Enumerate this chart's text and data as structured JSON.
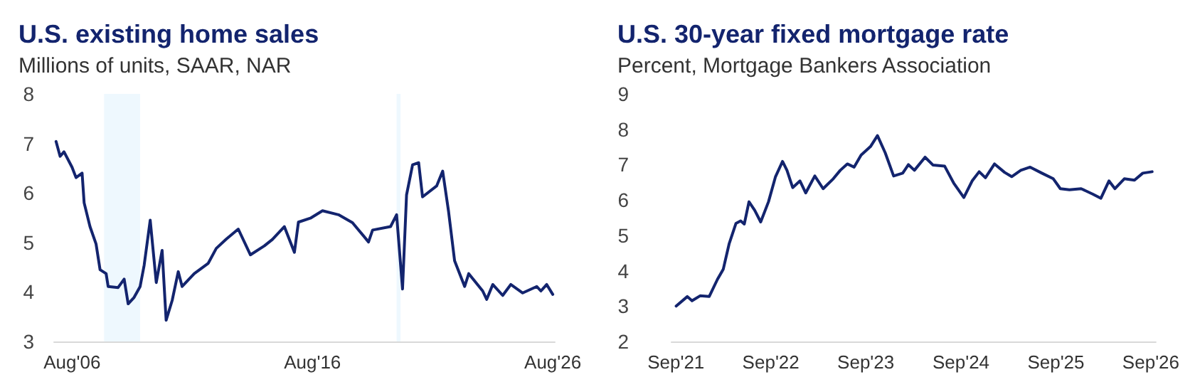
{
  "chart_data": [
    {
      "type": "line",
      "title": "U.S. existing home sales",
      "subtitle": "Millions of units, SAAR, NAR",
      "x": [
        "2005-12",
        "2006-02",
        "2006-04",
        "2006-08",
        "2006-10",
        "2007-01",
        "2007-02",
        "2007-05",
        "2007-08",
        "2007-10",
        "2008-01",
        "2008-02",
        "2008-07",
        "2008-10",
        "2008-12",
        "2009-03",
        "2009-06",
        "2009-08",
        "2009-11",
        "2010-02",
        "2010-05",
        "2010-07",
        "2010-10",
        "2011-01",
        "2011-03",
        "2011-09",
        "2012-04",
        "2012-08",
        "2013-01",
        "2013-07",
        "2014-01",
        "2014-08",
        "2014-12",
        "2015-06",
        "2015-11",
        "2016-01",
        "2016-07",
        "2017-01",
        "2017-09",
        "2018-04",
        "2018-12",
        "2019-02",
        "2019-11",
        "2020-02",
        "2020-05",
        "2020-07",
        "2020-10",
        "2021-01",
        "2021-03",
        "2021-10",
        "2022-01",
        "2022-04",
        "2022-07",
        "2022-12",
        "2023-02",
        "2023-09",
        "2023-11",
        "2024-02",
        "2024-07",
        "2024-11",
        "2025-05",
        "2025-12",
        "2026-02",
        "2026-05",
        "2026-08"
      ],
      "series": [
        {
          "color": "#13246e",
          "values": [
            7.04,
            6.74,
            6.83,
            6.52,
            6.31,
            6.4,
            5.8,
            5.32,
            4.97,
            4.45,
            4.37,
            4.11,
            4.09,
            4.26,
            3.76,
            3.89,
            4.11,
            4.54,
            5.45,
            4.19,
            4.84,
            3.43,
            3.83,
            4.41,
            4.11,
            4.37,
            4.58,
            4.88,
            5.07,
            5.27,
            4.75,
            4.93,
            5.06,
            5.32,
            4.8,
            5.41,
            5.49,
            5.64,
            5.56,
            5.4,
            5.01,
            5.25,
            5.32,
            5.56,
            4.06,
            5.96,
            6.57,
            6.61,
            5.92,
            6.14,
            6.44,
            5.62,
            4.63,
            4.11,
            4.37,
            4.02,
            3.85,
            4.15,
            3.93,
            4.15,
            3.98,
            4.11,
            4.02,
            4.15,
            3.95
          ]
        }
      ],
      "xlim": [
        "2005-11",
        "2026-09"
      ],
      "xticks": [
        {
          "value": "2006-08",
          "label": "Aug'06"
        },
        {
          "value": "2016-08",
          "label": "Aug'16"
        },
        {
          "value": "2026-08",
          "label": "Aug'26"
        }
      ],
      "ylim": [
        3,
        8
      ],
      "yticks": [
        3,
        4,
        5,
        6,
        7,
        8
      ],
      "bands": [
        {
          "axis": "x",
          "from": "2007-12",
          "to": "2009-06",
          "color": "#eef8fe"
        },
        {
          "axis": "x",
          "from": "2020-02",
          "to": "2020-04",
          "color": "#eef8fe"
        }
      ],
      "grid": false,
      "marker": "none",
      "line_style": "solid"
    },
    {
      "type": "line",
      "title": "U.S. 30-year fixed mortgage rate",
      "subtitle": "Percent, Mortgage Bankers Association",
      "x": [
        "2021-09-02",
        "2021-10-15",
        "2021-11-02",
        "2021-12-03",
        "2022-01-07",
        "2022-02-08",
        "2022-03-02",
        "2022-03-25",
        "2022-04-20",
        "2022-05-08",
        "2022-05-22",
        "2022-06-09",
        "2022-07-01",
        "2022-07-24",
        "2022-08-23",
        "2022-09-19",
        "2022-10-16",
        "2022-11-02",
        "2022-11-24",
        "2022-12-22",
        "2023-01-13",
        "2023-02-17",
        "2023-03-21",
        "2023-04-29",
        "2023-05-26",
        "2023-06-22",
        "2023-07-18",
        "2023-08-14",
        "2023-09-19",
        "2023-10-16",
        "2023-11-15",
        "2023-12-17",
        "2024-01-21",
        "2024-02-12",
        "2024-03-06",
        "2024-04-16",
        "2024-05-16",
        "2024-06-30",
        "2024-08-04",
        "2024-09-12",
        "2024-10-14",
        "2024-11-10",
        "2024-12-04",
        "2025-01-08",
        "2025-02-16",
        "2025-03-15",
        "2025-04-19",
        "2025-05-25",
        "2025-07-09",
        "2025-08-22",
        "2025-09-18",
        "2025-10-23",
        "2025-12-07",
        "2026-01-20",
        "2026-02-21",
        "2026-03-24",
        "2026-04-16",
        "2026-05-22",
        "2026-06-30",
        "2026-08-01",
        "2026-09-06"
      ],
      "series": [
        {
          "color": "#13246e",
          "values": [
            3.0,
            3.27,
            3.15,
            3.29,
            3.27,
            3.76,
            4.04,
            4.77,
            5.34,
            5.41,
            5.32,
            5.95,
            5.71,
            5.38,
            5.95,
            6.66,
            7.09,
            6.84,
            6.35,
            6.54,
            6.2,
            6.68,
            6.32,
            6.6,
            6.84,
            7.02,
            6.93,
            7.27,
            7.51,
            7.82,
            7.33,
            6.68,
            6.76,
            7.0,
            6.84,
            7.21,
            6.99,
            6.96,
            6.48,
            6.07,
            6.54,
            6.8,
            6.63,
            7.02,
            6.78,
            6.66,
            6.84,
            6.93,
            6.76,
            6.6,
            6.32,
            6.29,
            6.32,
            6.17,
            6.05,
            6.54,
            6.32,
            6.6,
            6.56,
            6.76,
            6.8
          ]
        }
      ],
      "xlim": [
        "2021-08-15",
        "2026-09-20"
      ],
      "xticks": [
        {
          "value": "2021-09-01",
          "label": "Sep'21"
        },
        {
          "value": "2022-09-01",
          "label": "Sep'22"
        },
        {
          "value": "2023-09-01",
          "label": "Sep'23"
        },
        {
          "value": "2024-09-01",
          "label": "Sep'24"
        },
        {
          "value": "2025-09-01",
          "label": "Sep'25"
        },
        {
          "value": "2026-09-01",
          "label": "Sep'26"
        }
      ],
      "ylim": [
        2,
        9
      ],
      "yticks": [
        2,
        3,
        4,
        5,
        6,
        7,
        8,
        9
      ],
      "grid": false,
      "marker": "none",
      "line_style": "solid"
    }
  ]
}
